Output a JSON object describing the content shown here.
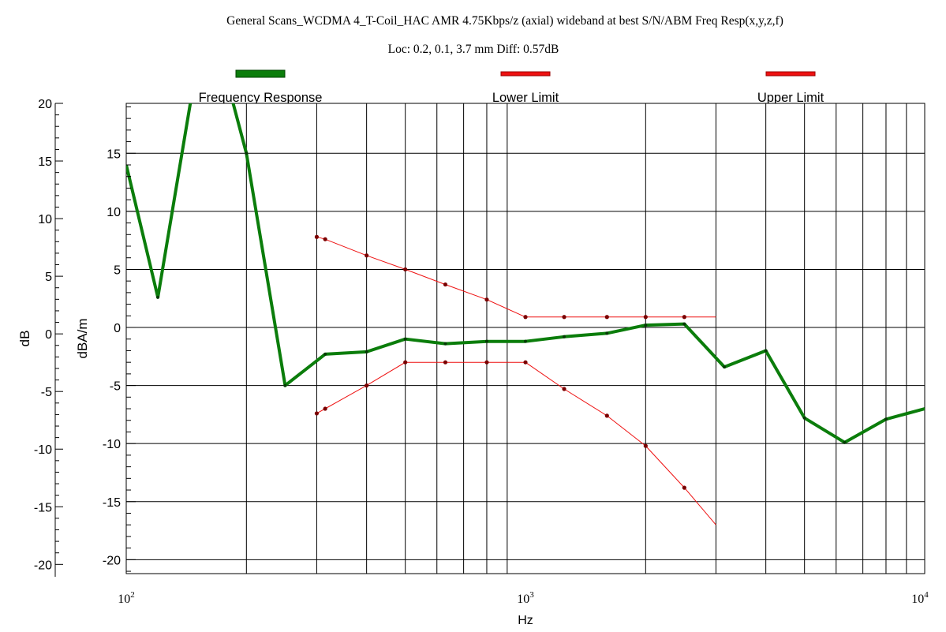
{
  "chart_data": {
    "type": "line",
    "title": "General Scans_WCDMA 4_T-Coil_HAC AMR 4.75Kbps/z (axial) wideband at best S/N/ABM Freq Resp(x,y,z,f)",
    "subtitle": "Loc: 0.2, 0.1, 3.7 mm Diff: 0.57dB",
    "xlabel": "Hz",
    "x_scale": "log",
    "xlim": [
      100,
      10000
    ],
    "x_ticks": [
      {
        "mantissa": "10",
        "exp": "2"
      },
      {
        "mantissa": "10",
        "exp": "3"
      },
      {
        "mantissa": "10",
        "exp": "4"
      }
    ],
    "y_outer": {
      "label": "dB",
      "ylim": [
        -20.8,
        20
      ],
      "ticks": [
        "20",
        "15",
        "10",
        "5",
        "0",
        "-5",
        "-10",
        "-15",
        "-20"
      ]
    },
    "y_inner": {
      "label": "dBA/m",
      "ylim": [
        -21.2,
        19.3
      ],
      "ticks": [
        "15",
        "10",
        "5",
        "0",
        "-5",
        "-10",
        "-15",
        "-20"
      ]
    },
    "grid": true,
    "legend_placement": "top",
    "series": [
      {
        "name": "Frequency Response",
        "color": "#0b7d0b",
        "line_width": 4,
        "x": [
          100,
          120,
          150,
          175,
          200,
          250,
          315,
          400,
          500,
          630,
          800,
          1000,
          1250,
          1600,
          2000,
          2500,
          3150,
          4000,
          5000,
          6300,
          8000,
          10000
        ],
        "y": [
          14.0,
          2.6,
          22.5,
          22.5,
          15.0,
          -5.0,
          -2.3,
          -2.1,
          -1.0,
          -1.4,
          -1.2,
          -1.2,
          -0.8,
          -0.5,
          0.2,
          0.3,
          -3.4,
          -2.0,
          -7.8,
          -9.9,
          -7.9,
          -7.0
        ]
      },
      {
        "name": "Lower Limit",
        "color": "#ee1111",
        "line_width": 1,
        "x": [
          300,
          315,
          400,
          500,
          630,
          800,
          1000,
          1250,
          1600,
          2000,
          2500,
          3000
        ],
        "y": [
          -7.4,
          -7.0,
          -5.0,
          -3.0,
          -3.0,
          -3.0,
          -3.0,
          -5.3,
          -7.6,
          -10.2,
          -13.8,
          -17.0
        ]
      },
      {
        "name": "Upper Limit",
        "color": "#ee1111",
        "line_width": 1,
        "x": [
          300,
          315,
          400,
          500,
          630,
          800,
          1000,
          1250,
          1600,
          2000,
          2500,
          3000
        ],
        "y": [
          7.8,
          7.6,
          6.2,
          5.0,
          3.7,
          2.4,
          0.9,
          0.9,
          0.9,
          0.9,
          0.9,
          0.9
        ]
      }
    ]
  }
}
